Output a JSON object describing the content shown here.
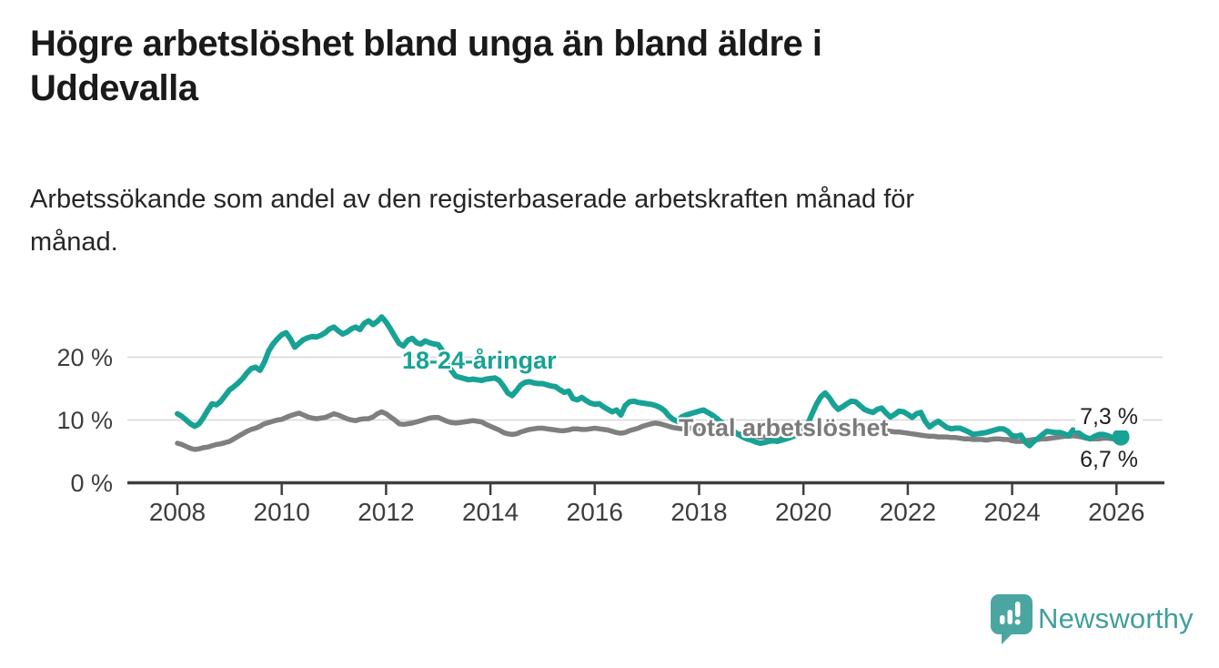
{
  "header": {
    "title": "Högre arbetslöshet bland unga än bland äldre i Uddevalla",
    "title_lines": [
      "Högre arbetslöshet bland unga än bland äldre i",
      "Uddevalla"
    ],
    "subtitle": "Arbetssökande som andel av den registerbaserade arbetskraften månad för månad.",
    "subtitle_lines": [
      "Arbetssökande som andel av den registerbaserade arbetskraften månad för",
      "månad."
    ]
  },
  "chart_data": {
    "type": "line",
    "unit": "%",
    "grid": "horizontal-only",
    "x_axis": {
      "tick_labels": [
        "2008",
        "2010",
        "2012",
        "2014",
        "2016",
        "2018",
        "2020",
        "2022",
        "2024",
        "2026"
      ],
      "tick_values": [
        2008,
        2010,
        2012,
        2014,
        2016,
        2018,
        2020,
        2022,
        2024,
        2026
      ],
      "range": [
        2008.0,
        2026.5
      ]
    },
    "y_axis": {
      "ticks": [
        {
          "value": 0,
          "label": "0 %"
        },
        {
          "value": 10,
          "label": "10 %"
        },
        {
          "value": 20,
          "label": "20 %"
        }
      ],
      "gridline_values": [
        10,
        20
      ],
      "range": [
        0,
        28
      ]
    },
    "series": [
      {
        "name": "18-24-åringar",
        "color": "#17a295",
        "stroke_width": 6,
        "start": 2008.0,
        "points_per_year": 12,
        "end_marker": true,
        "end_label": "7,3 %",
        "end_value": 7.3,
        "values": [
          11.0,
          10.6,
          10.0,
          9.4,
          9.0,
          9.4,
          10.4,
          11.6,
          12.6,
          12.4,
          13.0,
          13.9,
          14.8,
          15.3,
          15.9,
          16.6,
          17.5,
          18.2,
          18.4,
          17.9,
          19.2,
          21.0,
          22.1,
          22.9,
          23.6,
          23.9,
          22.9,
          21.6,
          22.2,
          22.8,
          23.1,
          23.3,
          23.2,
          23.5,
          23.9,
          24.5,
          24.8,
          24.2,
          23.7,
          24.0,
          24.5,
          24.8,
          24.4,
          25.4,
          25.8,
          25.2,
          25.7,
          26.4,
          25.6,
          24.5,
          23.3,
          22.2,
          21.8,
          22.7,
          23.0,
          22.3,
          22.1,
          22.6,
          22.3,
          22.1,
          22.0,
          21.0,
          19.4,
          17.9,
          17.0,
          16.8,
          16.6,
          16.4,
          16.5,
          16.4,
          16.3,
          16.5,
          16.6,
          16.7,
          16.3,
          15.4,
          14.3,
          13.9,
          14.7,
          15.6,
          16.0,
          16.1,
          15.9,
          15.8,
          15.8,
          15.6,
          15.4,
          15.3,
          14.8,
          14.4,
          14.6,
          13.4,
          13.2,
          13.6,
          13.1,
          12.7,
          12.5,
          12.6,
          12.1,
          11.7,
          11.3,
          11.6,
          10.8,
          12.3,
          12.9,
          13.0,
          12.8,
          12.7,
          12.6,
          12.5,
          12.3,
          12.0,
          11.5,
          10.7,
          10.1,
          9.8,
          10.5,
          10.8,
          11.0,
          11.2,
          11.4,
          11.6,
          11.2,
          10.8,
          10.3,
          9.7,
          9.2,
          8.7,
          8.2,
          7.7,
          7.3,
          7.0,
          6.8,
          6.5,
          6.3,
          6.4,
          6.6,
          6.7,
          6.6,
          6.8,
          7.0,
          7.2,
          7.5,
          7.9,
          8.5,
          9.4,
          11.0,
          12.5,
          13.7,
          14.3,
          13.5,
          12.4,
          11.7,
          12.1,
          12.6,
          13.0,
          12.9,
          12.3,
          11.7,
          11.4,
          11.2,
          11.7,
          11.9,
          11.1,
          10.5,
          10.9,
          11.4,
          11.3,
          10.9,
          10.4,
          11.0,
          11.2,
          9.8,
          8.9,
          9.4,
          9.8,
          9.3,
          8.8,
          8.6,
          8.7,
          8.7,
          8.4,
          8.1,
          7.7,
          7.8,
          7.9,
          8.0,
          8.2,
          8.4,
          8.6,
          8.6,
          8.2,
          7.5,
          7.4,
          7.6,
          6.5,
          5.9,
          6.6,
          7.1,
          7.7,
          8.2,
          8.1,
          8.0,
          8.0,
          7.8,
          7.5,
          8.4,
          8.1,
          7.6,
          7.2,
          7.0,
          7.4,
          7.7,
          7.7,
          7.5,
          7.2,
          7.2,
          7.3
        ]
      },
      {
        "name": "Total arbetslöshet",
        "color": "#7f7f7f",
        "stroke_width": 5.5,
        "start": 2008.0,
        "points_per_year": 12,
        "end_marker": false,
        "end_label": "6,7 %",
        "end_value": 6.7,
        "values": [
          6.3,
          6.1,
          5.8,
          5.5,
          5.3,
          5.4,
          5.6,
          5.7,
          5.9,
          6.1,
          6.2,
          6.4,
          6.6,
          7.0,
          7.4,
          7.8,
          8.2,
          8.5,
          8.7,
          9.0,
          9.4,
          9.6,
          9.8,
          10.0,
          10.1,
          10.4,
          10.7,
          10.9,
          11.1,
          10.8,
          10.5,
          10.3,
          10.2,
          10.3,
          10.4,
          10.7,
          11.0,
          10.8,
          10.5,
          10.2,
          10.0,
          9.9,
          10.1,
          10.2,
          10.2,
          10.5,
          11.0,
          11.3,
          11.0,
          10.5,
          10.0,
          9.4,
          9.3,
          9.4,
          9.5,
          9.7,
          9.9,
          10.1,
          10.3,
          10.4,
          10.4,
          10.1,
          9.8,
          9.6,
          9.5,
          9.6,
          9.7,
          9.8,
          9.9,
          9.8,
          9.7,
          9.3,
          9.0,
          8.7,
          8.4,
          8.0,
          7.8,
          7.7,
          7.8,
          8.1,
          8.3,
          8.5,
          8.6,
          8.7,
          8.7,
          8.6,
          8.5,
          8.4,
          8.3,
          8.3,
          8.4,
          8.6,
          8.6,
          8.5,
          8.5,
          8.6,
          8.7,
          8.6,
          8.5,
          8.4,
          8.2,
          8.0,
          7.9,
          8.0,
          8.3,
          8.5,
          8.7,
          9.0,
          9.2,
          9.4,
          9.5,
          9.4,
          9.2,
          9.0,
          8.8,
          8.7,
          8.6,
          8.6,
          8.7,
          8.7,
          8.7,
          8.6,
          8.5,
          8.4,
          8.3,
          8.2,
          8.1,
          8.0,
          7.9,
          7.8,
          7.7,
          7.6,
          7.5,
          7.4,
          7.3,
          7.3,
          7.2,
          7.2,
          7.2,
          7.3,
          7.3,
          7.4,
          7.5,
          7.6,
          7.8,
          8.0,
          8.4,
          8.7,
          8.9,
          9.1,
          9.2,
          9.2,
          9.1,
          9.1,
          9.0,
          9.0,
          8.9,
          8.8,
          8.7,
          8.6,
          8.5,
          8.4,
          8.4,
          8.3,
          8.2,
          8.1,
          8.1,
          8.0,
          7.9,
          7.8,
          7.7,
          7.6,
          7.5,
          7.4,
          7.4,
          7.3,
          7.3,
          7.3,
          7.2,
          7.2,
          7.1,
          7.0,
          7.0,
          6.9,
          6.9,
          6.9,
          6.8,
          6.9,
          7.0,
          7.0,
          6.9,
          6.9,
          6.7,
          6.6,
          6.6,
          6.7,
          6.8,
          6.9,
          6.9,
          7.0,
          7.0,
          7.1,
          7.2,
          7.3,
          7.4,
          7.4,
          7.5,
          7.4,
          7.3,
          7.1,
          7.0,
          7.0,
          7.0,
          7.1,
          7.1,
          7.0,
          6.9,
          6.7
        ]
      }
    ]
  },
  "footer": {
    "brand": "Newsworthy"
  },
  "colors": {
    "accent_teal": "#17a295",
    "line_gray": "#7f7f7f",
    "axis": "#3f3f3f",
    "grid": "#d8d8d8",
    "text": "#1a1a1a",
    "logo_bubble": "#4ba6a1",
    "logo_text": "#3f9f9b"
  }
}
